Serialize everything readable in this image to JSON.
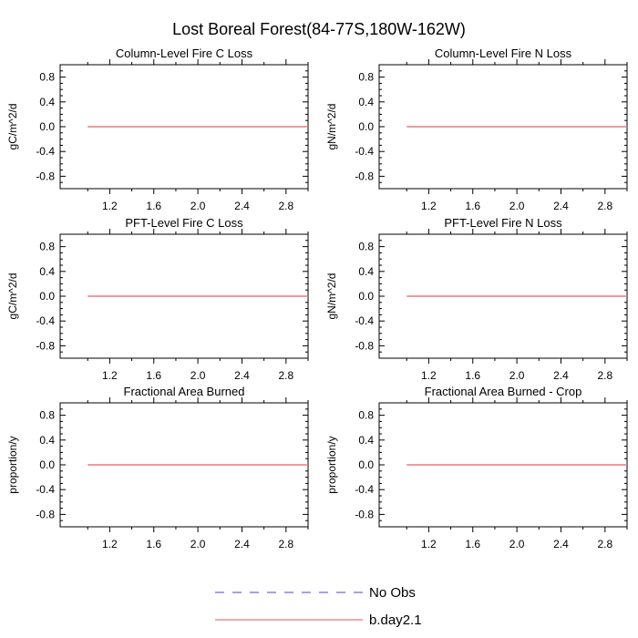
{
  "figure": {
    "title": "Lost Boreal Forest(84-77S,180W-162W)"
  },
  "colors": {
    "frame": "#000000",
    "model_line": "#e8787b",
    "obs_line": "#6b6bd6"
  },
  "legend": {
    "entries": [
      {
        "name": "No Obs",
        "style": "dashed",
        "color": "#6b6bd6"
      },
      {
        "name": "b.day2.1",
        "style": "solid",
        "color": "#e8787b"
      }
    ]
  },
  "chart_data": [
    {
      "type": "line",
      "title": "Column-Level Fire C Loss",
      "xlabel": "",
      "ylabel": "gC/m^2/d",
      "xlim": [
        0.75,
        3.0
      ],
      "ylim": [
        -1.0,
        1.0
      ],
      "xticks": [
        "1.2",
        "1.6",
        "2.0",
        "2.4",
        "2.8"
      ],
      "yticks": [
        "0.8",
        "0.4",
        "0.0",
        "-0.4",
        "-0.8"
      ],
      "series": [
        {
          "name": "b.day2.1",
          "x": [
            1.0,
            3.0
          ],
          "y": [
            0.0,
            0.0
          ]
        }
      ]
    },
    {
      "type": "line",
      "title": "Column-Level Fire N Loss",
      "xlabel": "",
      "ylabel": "gN/m^2/d",
      "xlim": [
        0.75,
        3.0
      ],
      "ylim": [
        -1.0,
        1.0
      ],
      "xticks": [
        "1.2",
        "1.6",
        "2.0",
        "2.4",
        "2.8"
      ],
      "yticks": [
        "0.8",
        "0.4",
        "0.0",
        "-0.4",
        "-0.8"
      ],
      "series": [
        {
          "name": "b.day2.1",
          "x": [
            1.0,
            3.0
          ],
          "y": [
            0.0,
            0.0
          ]
        }
      ]
    },
    {
      "type": "line",
      "title": "PFT-Level Fire C Loss",
      "xlabel": "",
      "ylabel": "gC/m^2/d",
      "xlim": [
        0.75,
        3.0
      ],
      "ylim": [
        -1.0,
        1.0
      ],
      "xticks": [
        "1.2",
        "1.6",
        "2.0",
        "2.4",
        "2.8"
      ],
      "yticks": [
        "0.8",
        "0.4",
        "0.0",
        "-0.4",
        "-0.8"
      ],
      "series": [
        {
          "name": "b.day2.1",
          "x": [
            1.0,
            3.0
          ],
          "y": [
            0.0,
            0.0
          ]
        }
      ]
    },
    {
      "type": "line",
      "title": "PFT-Level Fire N Loss",
      "xlabel": "",
      "ylabel": "gN/m^2/d",
      "xlim": [
        0.75,
        3.0
      ],
      "ylim": [
        -1.0,
        1.0
      ],
      "xticks": [
        "1.2",
        "1.6",
        "2.0",
        "2.4",
        "2.8"
      ],
      "yticks": [
        "0.8",
        "0.4",
        "0.0",
        "-0.4",
        "-0.8"
      ],
      "series": [
        {
          "name": "b.day2.1",
          "x": [
            1.0,
            3.0
          ],
          "y": [
            0.0,
            0.0
          ]
        }
      ]
    },
    {
      "type": "line",
      "title": "Fractional Area Burned",
      "xlabel": "",
      "ylabel": "proportion/y",
      "xlim": [
        0.75,
        3.0
      ],
      "ylim": [
        -1.0,
        1.0
      ],
      "xticks": [
        "1.2",
        "1.6",
        "2.0",
        "2.4",
        "2.8"
      ],
      "yticks": [
        "0.8",
        "0.4",
        "0.0",
        "-0.4",
        "-0.8"
      ],
      "series": [
        {
          "name": "b.day2.1",
          "x": [
            1.0,
            3.0
          ],
          "y": [
            0.0,
            0.0
          ]
        }
      ]
    },
    {
      "type": "line",
      "title": "Fractional Area Burned - Crop",
      "xlabel": "",
      "ylabel": "proportion/y",
      "xlim": [
        0.75,
        3.0
      ],
      "ylim": [
        -1.0,
        1.0
      ],
      "xticks": [
        "1.2",
        "1.6",
        "2.0",
        "2.4",
        "2.8"
      ],
      "yticks": [
        "0.8",
        "0.4",
        "0.0",
        "-0.4",
        "-0.8"
      ],
      "series": [
        {
          "name": "b.day2.1",
          "x": [
            1.0,
            3.0
          ],
          "y": [
            0.0,
            0.0
          ]
        }
      ]
    }
  ]
}
